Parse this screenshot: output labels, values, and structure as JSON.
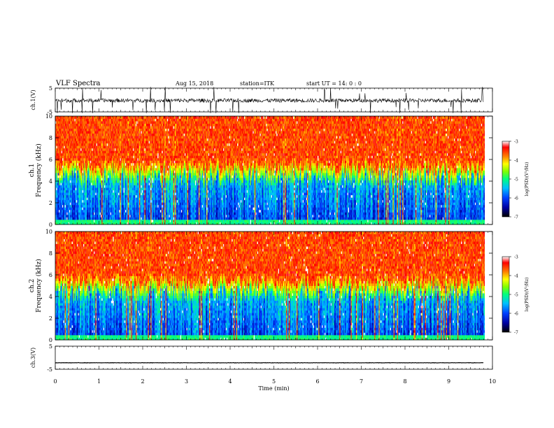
{
  "header": {
    "title": "VLF Spectra",
    "date": "Aug 15, 2018",
    "station": "station=ITK",
    "start": "start UT = 14: 0 : 0"
  },
  "chart_data": [
    {
      "type": "line",
      "panel": "ch1_waveform",
      "ylabel": "ch.1(V)",
      "yticks": [
        "5",
        "-5"
      ],
      "ylim": [
        -5,
        5
      ],
      "baseline_value": -0.2,
      "amplitude_note": "noisy waveform with frequent impulsive spikes"
    },
    {
      "type": "heatmap",
      "panel": "ch1_spectrogram",
      "ylabel_line1": "ch.1",
      "ylabel_line2": "Frequency (kHz)",
      "ylim": [
        0,
        10
      ],
      "yticks": [
        "0",
        "2",
        "4",
        "6",
        "8",
        "10"
      ],
      "colorbar": {
        "label": "log(PSD)(V²/Hz)",
        "range": [
          -7,
          -3
        ],
        "ticks": [
          "-3",
          "-4",
          "-5",
          "-6",
          "-7"
        ]
      },
      "cutoff_band_khz": [
        3.5,
        5.0
      ]
    },
    {
      "type": "heatmap",
      "panel": "ch2_spectrogram",
      "ylabel_line1": "ch.2",
      "ylabel_line2": "Frequency (kHz)",
      "ylim": [
        0,
        10
      ],
      "yticks": [
        "0",
        "2",
        "4",
        "6",
        "8",
        "10"
      ],
      "colorbar": {
        "label": "log(PSD)(V²/Hz)",
        "range": [
          -7,
          -3
        ],
        "ticks": [
          "-3",
          "-4",
          "-5",
          "-6",
          "-7"
        ]
      },
      "cutoff_band_khz": [
        3.5,
        5.0
      ]
    },
    {
      "type": "line",
      "panel": "ch3_waveform",
      "ylabel": "ch.3(V)",
      "yticks": [
        "5",
        "-5"
      ],
      "ylim": [
        -5,
        5
      ],
      "baseline_value": -2.2
    }
  ],
  "xaxis": {
    "label": "Time (min)",
    "ticks": [
      "0",
      "1",
      "2",
      "3",
      "4",
      "5",
      "6",
      "7",
      "8",
      "9",
      "10"
    ],
    "xlim": [
      0,
      10
    ],
    "data_end": 9.8
  },
  "colors": {
    "colormap": [
      "#000000",
      "#0000a0",
      "#0040ff",
      "#00c0ff",
      "#00ff80",
      "#80ff00",
      "#ffff00",
      "#ff8000",
      "#ff0000",
      "#ffffff"
    ]
  }
}
